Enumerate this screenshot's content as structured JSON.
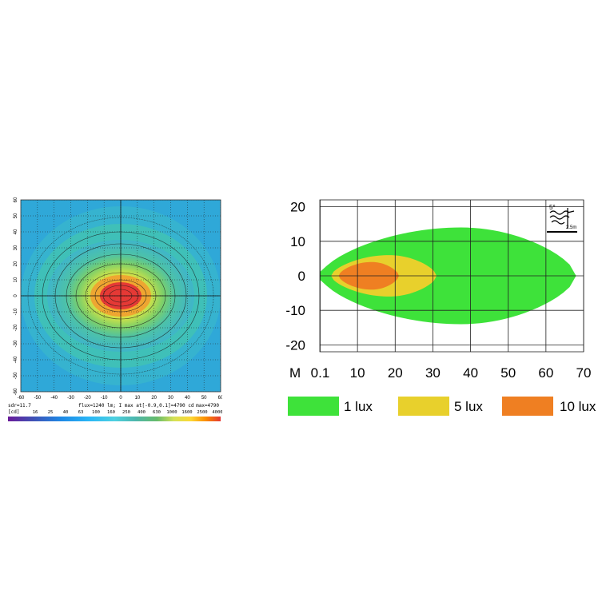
{
  "chart_data": [
    {
      "type": "heatmap",
      "x_ticks": [
        "-60",
        "-50",
        "-40",
        "-30",
        "-20",
        "-10",
        "0",
        "10",
        "20",
        "30",
        "40",
        "50",
        "60"
      ],
      "y_ticks": [
        "60",
        "50",
        "40",
        "30",
        "20",
        "10",
        "0",
        "-10",
        "-20",
        "-30",
        "-40",
        "-50",
        "-60"
      ],
      "xlim": [
        -60,
        60
      ],
      "ylim": [
        -60,
        60
      ],
      "footer_left": "sdr=11.7",
      "footer_center": "flux=1240 lm; I max at[-0.9,0.1]=4790 cd",
      "footer_right": "max=4790",
      "unit_label": "[cd]",
      "color_scale": [
        "16",
        "25",
        "40",
        "63",
        "100",
        "160",
        "250",
        "400",
        "630",
        "1000",
        "1600",
        "2500",
        "4000"
      ],
      "colors": [
        "#6a1b9a",
        "#3f51b5",
        "#1e88e5",
        "#29b6f6",
        "#4dd0e1",
        "#80cbc4",
        "#4db6ac",
        "#66bb6a",
        "#9ccc65",
        "#d4e157",
        "#fdd835",
        "#fb8c00",
        "#e53935"
      ],
      "peak": {
        "x": -0.9,
        "y": 0.1,
        "value": 4790
      },
      "grid": true
    },
    {
      "type": "area",
      "xlabel_prefix": "M",
      "x_ticks": [
        "0.1",
        "10",
        "20",
        "30",
        "40",
        "50",
        "60",
        "70"
      ],
      "y_ticks": [
        "20",
        "10",
        "0",
        "-10",
        "-20"
      ],
      "xlim": [
        0,
        70
      ],
      "ylim": [
        -22,
        22
      ],
      "series": [
        {
          "name": "1 lux",
          "color": "#3ee23a",
          "x_range": [
            0.1,
            68
          ],
          "half_width_max": 14
        },
        {
          "name": "5 lux",
          "color": "#e8d02c",
          "x_range": [
            3,
            31
          ],
          "half_width_max": 6
        },
        {
          "name": "10 lux",
          "color": "#ef7f22",
          "x_range": [
            5,
            21
          ],
          "half_width_max": 4
        }
      ],
      "legend_position": "bottom",
      "inset_labels": {
        "angle": "5°",
        "height": "2.5m"
      },
      "grid": true
    }
  ]
}
